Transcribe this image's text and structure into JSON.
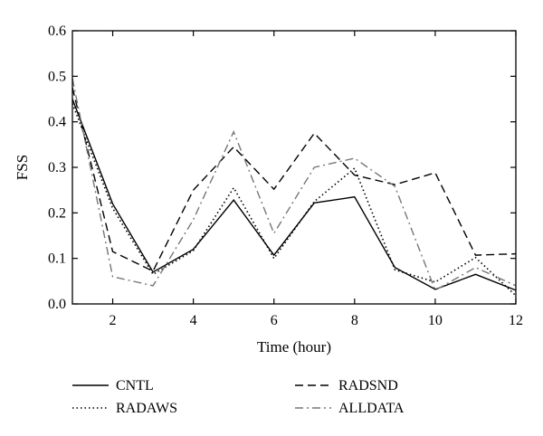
{
  "chart_data": {
    "type": "line",
    "title": "",
    "xlabel": "Time (hour)",
    "ylabel": "FSS",
    "xlim": [
      1,
      12
    ],
    "ylim": [
      0.0,
      0.6
    ],
    "x_ticks": [
      2,
      4,
      6,
      8,
      10,
      12
    ],
    "x_tick_labels": [
      "2",
      "4",
      "6",
      "8",
      "10",
      "12"
    ],
    "y_ticks": [
      0.0,
      0.1,
      0.2,
      0.3,
      0.4,
      0.5,
      0.6
    ],
    "y_tick_labels": [
      "0.0",
      "0.1",
      "0.2",
      "0.3",
      "0.4",
      "0.5",
      "0.6"
    ],
    "grid": false,
    "legend_position": "bottom",
    "x": [
      1,
      2,
      3,
      4,
      5,
      6,
      7,
      8,
      9,
      10,
      11,
      12
    ],
    "series": [
      {
        "name": "CNTL",
        "dash": "solid",
        "color": "#000000",
        "values": [
          0.45,
          0.22,
          0.07,
          0.12,
          0.228,
          0.107,
          0.222,
          0.235,
          0.08,
          0.032,
          0.065,
          0.03
        ]
      },
      {
        "name": "RADSND",
        "dash": "dashed",
        "color": "#000000",
        "values": [
          0.475,
          0.115,
          0.072,
          0.25,
          0.345,
          0.252,
          0.375,
          0.283,
          0.262,
          0.288,
          0.107,
          0.11
        ]
      },
      {
        "name": "RADAWS",
        "dash": "dotted",
        "color": "#000000",
        "values": [
          0.44,
          0.21,
          0.065,
          0.117,
          0.255,
          0.1,
          0.225,
          0.298,
          0.075,
          0.048,
          0.102,
          0.018
        ]
      },
      {
        "name": "ALLDATA",
        "dash": "dashdot",
        "color": "#777777",
        "values": [
          0.495,
          0.06,
          0.04,
          0.185,
          0.378,
          0.155,
          0.3,
          0.32,
          0.258,
          0.03,
          0.08,
          0.04
        ]
      }
    ]
  }
}
